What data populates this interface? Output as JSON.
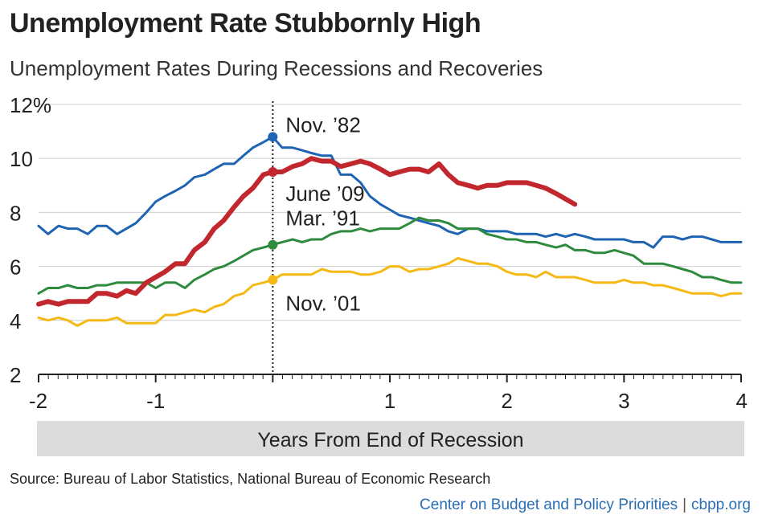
{
  "chart_data": {
    "type": "line",
    "title": "Unemployment Rate Stubbornly High",
    "subtitle": "Unemployment Rates During Recessions and Recoveries",
    "xlabel": "Years From End of Recession",
    "ylabel": "",
    "xlim": [
      -2,
      4
    ],
    "ylim": [
      2,
      12
    ],
    "x_ticks": [
      {
        "value": -2,
        "label": "-2"
      },
      {
        "value": -1,
        "label": "-1"
      },
      {
        "value": 1,
        "label": "1"
      },
      {
        "value": 2,
        "label": "2"
      },
      {
        "value": 3,
        "label": "3"
      },
      {
        "value": 4,
        "label": "4"
      }
    ],
    "y_ticks": [
      {
        "value": 2,
        "label": "2"
      },
      {
        "value": 4,
        "label": "4"
      },
      {
        "value": 6,
        "label": "6"
      },
      {
        "value": 8,
        "label": "8"
      },
      {
        "value": 10,
        "label": "10"
      },
      {
        "value": 12,
        "label": "12%"
      }
    ],
    "reference_line_x": 0,
    "series": [
      {
        "name": "Nov. '82",
        "color": "#1f64b3",
        "marker_at": [
          0,
          10.8
        ],
        "points": [
          [
            -2,
            7.5
          ],
          [
            -1.92,
            7.2
          ],
          [
            -1.83,
            7.5
          ],
          [
            -1.75,
            7.4
          ],
          [
            -1.67,
            7.4
          ],
          [
            -1.58,
            7.2
          ],
          [
            -1.5,
            7.5
          ],
          [
            -1.42,
            7.5
          ],
          [
            -1.33,
            7.2
          ],
          [
            -1.25,
            7.4
          ],
          [
            -1.17,
            7.6
          ],
          [
            -1.08,
            8.0
          ],
          [
            -1,
            8.4
          ],
          [
            -0.92,
            8.6
          ],
          [
            -0.83,
            8.8
          ],
          [
            -0.75,
            9.0
          ],
          [
            -0.67,
            9.3
          ],
          [
            -0.58,
            9.4
          ],
          [
            -0.5,
            9.6
          ],
          [
            -0.42,
            9.8
          ],
          [
            -0.33,
            9.8
          ],
          [
            -0.25,
            10.1
          ],
          [
            -0.17,
            10.4
          ],
          [
            -0.08,
            10.6
          ],
          [
            0,
            10.8
          ],
          [
            0.08,
            10.4
          ],
          [
            0.17,
            10.4
          ],
          [
            0.25,
            10.3
          ],
          [
            0.33,
            10.2
          ],
          [
            0.42,
            10.1
          ],
          [
            0.5,
            10.1
          ],
          [
            0.58,
            9.4
          ],
          [
            0.67,
            9.4
          ],
          [
            0.75,
            9.1
          ],
          [
            0.83,
            8.6
          ],
          [
            0.92,
            8.3
          ],
          [
            1,
            8.1
          ],
          [
            1.08,
            7.9
          ],
          [
            1.17,
            7.8
          ],
          [
            1.25,
            7.7
          ],
          [
            1.33,
            7.6
          ],
          [
            1.42,
            7.5
          ],
          [
            1.5,
            7.3
          ],
          [
            1.58,
            7.2
          ],
          [
            1.67,
            7.4
          ],
          [
            1.75,
            7.4
          ],
          [
            1.83,
            7.3
          ],
          [
            1.92,
            7.3
          ],
          [
            2,
            7.3
          ],
          [
            2.08,
            7.2
          ],
          [
            2.17,
            7.2
          ],
          [
            2.25,
            7.2
          ],
          [
            2.33,
            7.1
          ],
          [
            2.42,
            7.2
          ],
          [
            2.5,
            7.1
          ],
          [
            2.58,
            7.2
          ],
          [
            2.67,
            7.1
          ],
          [
            2.75,
            7.0
          ],
          [
            2.83,
            7.0
          ],
          [
            2.92,
            7.0
          ],
          [
            3,
            7.0
          ],
          [
            3.08,
            6.9
          ],
          [
            3.17,
            6.9
          ],
          [
            3.25,
            6.7
          ],
          [
            3.33,
            7.1
          ],
          [
            3.42,
            7.1
          ],
          [
            3.5,
            7.0
          ],
          [
            3.58,
            7.1
          ],
          [
            3.67,
            7.1
          ],
          [
            3.75,
            7.0
          ],
          [
            3.83,
            6.9
          ],
          [
            3.92,
            6.9
          ],
          [
            4,
            6.9
          ]
        ]
      },
      {
        "name": "June '09",
        "color": "#c1272d",
        "marker_at": [
          0,
          9.5
        ],
        "points": [
          [
            -2,
            4.6
          ],
          [
            -1.92,
            4.7
          ],
          [
            -1.83,
            4.6
          ],
          [
            -1.75,
            4.7
          ],
          [
            -1.67,
            4.7
          ],
          [
            -1.58,
            4.7
          ],
          [
            -1.5,
            5.0
          ],
          [
            -1.42,
            5.0
          ],
          [
            -1.33,
            4.9
          ],
          [
            -1.25,
            5.1
          ],
          [
            -1.17,
            5.0
          ],
          [
            -1.08,
            5.4
          ],
          [
            -1,
            5.6
          ],
          [
            -0.92,
            5.8
          ],
          [
            -0.83,
            6.1
          ],
          [
            -0.75,
            6.1
          ],
          [
            -0.67,
            6.6
          ],
          [
            -0.58,
            6.9
          ],
          [
            -0.5,
            7.4
          ],
          [
            -0.42,
            7.7
          ],
          [
            -0.33,
            8.2
          ],
          [
            -0.25,
            8.6
          ],
          [
            -0.17,
            8.9
          ],
          [
            -0.08,
            9.4
          ],
          [
            0,
            9.5
          ],
          [
            0.08,
            9.5
          ],
          [
            0.17,
            9.7
          ],
          [
            0.25,
            9.8
          ],
          [
            0.33,
            10.0
          ],
          [
            0.42,
            9.9
          ],
          [
            0.5,
            9.9
          ],
          [
            0.58,
            9.7
          ],
          [
            0.67,
            9.8
          ],
          [
            0.75,
            9.9
          ],
          [
            0.83,
            9.8
          ],
          [
            0.92,
            9.6
          ],
          [
            1,
            9.4
          ],
          [
            1.08,
            9.5
          ],
          [
            1.17,
            9.6
          ],
          [
            1.25,
            9.6
          ],
          [
            1.33,
            9.5
          ],
          [
            1.42,
            9.8
          ],
          [
            1.5,
            9.4
          ],
          [
            1.58,
            9.1
          ],
          [
            1.67,
            9.0
          ],
          [
            1.75,
            8.9
          ],
          [
            1.83,
            9.0
          ],
          [
            1.92,
            9.0
          ],
          [
            2,
            9.1
          ],
          [
            2.08,
            9.1
          ],
          [
            2.17,
            9.1
          ],
          [
            2.25,
            9.0
          ],
          [
            2.33,
            8.9
          ],
          [
            2.42,
            8.7
          ],
          [
            2.5,
            8.5
          ],
          [
            2.58,
            8.3
          ]
        ]
      },
      {
        "name": "Mar. '91",
        "color": "#2e8b3e",
        "marker_at": [
          0,
          6.8
        ],
        "points": [
          [
            -2,
            5.0
          ],
          [
            -1.92,
            5.2
          ],
          [
            -1.83,
            5.2
          ],
          [
            -1.75,
            5.3
          ],
          [
            -1.67,
            5.2
          ],
          [
            -1.58,
            5.2
          ],
          [
            -1.5,
            5.3
          ],
          [
            -1.42,
            5.3
          ],
          [
            -1.33,
            5.4
          ],
          [
            -1.25,
            5.4
          ],
          [
            -1.17,
            5.4
          ],
          [
            -1.08,
            5.4
          ],
          [
            -1,
            5.2
          ],
          [
            -0.92,
            5.4
          ],
          [
            -0.83,
            5.4
          ],
          [
            -0.75,
            5.2
          ],
          [
            -0.67,
            5.5
          ],
          [
            -0.58,
            5.7
          ],
          [
            -0.5,
            5.9
          ],
          [
            -0.42,
            6.0
          ],
          [
            -0.33,
            6.2
          ],
          [
            -0.25,
            6.4
          ],
          [
            -0.17,
            6.6
          ],
          [
            -0.08,
            6.7
          ],
          [
            0,
            6.8
          ],
          [
            0.08,
            6.9
          ],
          [
            0.17,
            7.0
          ],
          [
            0.25,
            6.9
          ],
          [
            0.33,
            7.0
          ],
          [
            0.42,
            7.0
          ],
          [
            0.5,
            7.2
          ],
          [
            0.58,
            7.3
          ],
          [
            0.67,
            7.3
          ],
          [
            0.75,
            7.4
          ],
          [
            0.83,
            7.3
          ],
          [
            0.92,
            7.4
          ],
          [
            1,
            7.4
          ],
          [
            1.08,
            7.4
          ],
          [
            1.17,
            7.6
          ],
          [
            1.25,
            7.8
          ],
          [
            1.33,
            7.7
          ],
          [
            1.42,
            7.7
          ],
          [
            1.5,
            7.6
          ],
          [
            1.58,
            7.4
          ],
          [
            1.67,
            7.4
          ],
          [
            1.75,
            7.4
          ],
          [
            1.83,
            7.2
          ],
          [
            1.92,
            7.1
          ],
          [
            2,
            7.0
          ],
          [
            2.08,
            7.0
          ],
          [
            2.17,
            6.9
          ],
          [
            2.25,
            6.9
          ],
          [
            2.33,
            6.8
          ],
          [
            2.42,
            6.7
          ],
          [
            2.5,
            6.8
          ],
          [
            2.58,
            6.6
          ],
          [
            2.67,
            6.6
          ],
          [
            2.75,
            6.5
          ],
          [
            2.83,
            6.5
          ],
          [
            2.92,
            6.6
          ],
          [
            3,
            6.5
          ],
          [
            3.08,
            6.4
          ],
          [
            3.17,
            6.1
          ],
          [
            3.25,
            6.1
          ],
          [
            3.33,
            6.1
          ],
          [
            3.42,
            6.0
          ],
          [
            3.5,
            5.9
          ],
          [
            3.58,
            5.8
          ],
          [
            3.67,
            5.6
          ],
          [
            3.75,
            5.6
          ],
          [
            3.83,
            5.5
          ],
          [
            3.92,
            5.4
          ],
          [
            4,
            5.4
          ]
        ]
      },
      {
        "name": "Nov. '01",
        "color": "#f5b915",
        "marker_at": [
          0,
          5.5
        ],
        "points": [
          [
            -2,
            4.1
          ],
          [
            -1.92,
            4.0
          ],
          [
            -1.83,
            4.1
          ],
          [
            -1.75,
            4.0
          ],
          [
            -1.67,
            3.8
          ],
          [
            -1.58,
            4.0
          ],
          [
            -1.5,
            4.0
          ],
          [
            -1.42,
            4.0
          ],
          [
            -1.33,
            4.1
          ],
          [
            -1.25,
            3.9
          ],
          [
            -1.17,
            3.9
          ],
          [
            -1.08,
            3.9
          ],
          [
            -1,
            3.9
          ],
          [
            -0.92,
            4.2
          ],
          [
            -0.83,
            4.2
          ],
          [
            -0.75,
            4.3
          ],
          [
            -0.67,
            4.4
          ],
          [
            -0.58,
            4.3
          ],
          [
            -0.5,
            4.5
          ],
          [
            -0.42,
            4.6
          ],
          [
            -0.33,
            4.9
          ],
          [
            -0.25,
            5.0
          ],
          [
            -0.17,
            5.3
          ],
          [
            -0.08,
            5.4
          ],
          [
            0,
            5.5
          ],
          [
            0.08,
            5.7
          ],
          [
            0.17,
            5.7
          ],
          [
            0.25,
            5.7
          ],
          [
            0.33,
            5.7
          ],
          [
            0.42,
            5.9
          ],
          [
            0.5,
            5.8
          ],
          [
            0.58,
            5.8
          ],
          [
            0.67,
            5.8
          ],
          [
            0.75,
            5.7
          ],
          [
            0.83,
            5.7
          ],
          [
            0.92,
            5.8
          ],
          [
            1,
            6.0
          ],
          [
            1.08,
            6.0
          ],
          [
            1.17,
            5.8
          ],
          [
            1.25,
            5.9
          ],
          [
            1.33,
            5.9
          ],
          [
            1.42,
            6.0
          ],
          [
            1.5,
            6.1
          ],
          [
            1.58,
            6.3
          ],
          [
            1.67,
            6.2
          ],
          [
            1.75,
            6.1
          ],
          [
            1.83,
            6.1
          ],
          [
            1.92,
            6.0
          ],
          [
            2,
            5.8
          ],
          [
            2.08,
            5.7
          ],
          [
            2.17,
            5.7
          ],
          [
            2.25,
            5.6
          ],
          [
            2.33,
            5.8
          ],
          [
            2.42,
            5.6
          ],
          [
            2.5,
            5.6
          ],
          [
            2.58,
            5.6
          ],
          [
            2.67,
            5.5
          ],
          [
            2.75,
            5.4
          ],
          [
            2.83,
            5.4
          ],
          [
            2.92,
            5.4
          ],
          [
            3,
            5.5
          ],
          [
            3.08,
            5.4
          ],
          [
            3.17,
            5.4
          ],
          [
            3.25,
            5.3
          ],
          [
            3.33,
            5.3
          ],
          [
            3.42,
            5.2
          ],
          [
            3.5,
            5.1
          ],
          [
            3.58,
            5.0
          ],
          [
            3.67,
            5.0
          ],
          [
            3.75,
            5.0
          ],
          [
            3.83,
            4.9
          ],
          [
            3.92,
            5.0
          ],
          [
            4,
            5.0
          ]
        ]
      }
    ],
    "annotations": [
      {
        "text": "Nov. ’82",
        "series": "Nov. '82"
      },
      {
        "text": "June ’09",
        "series": "June '09"
      },
      {
        "text": "Mar. ’91",
        "series": "Mar. '91"
      },
      {
        "text": "Nov. ’01",
        "series": "Nov. '01"
      }
    ]
  },
  "footer": {
    "source": "Source: Bureau of Labor Statistics, National Bureau of Economic Research",
    "org": "Center on Budget and Policy Priorities",
    "separator": "|",
    "site": "cbpp.org"
  }
}
